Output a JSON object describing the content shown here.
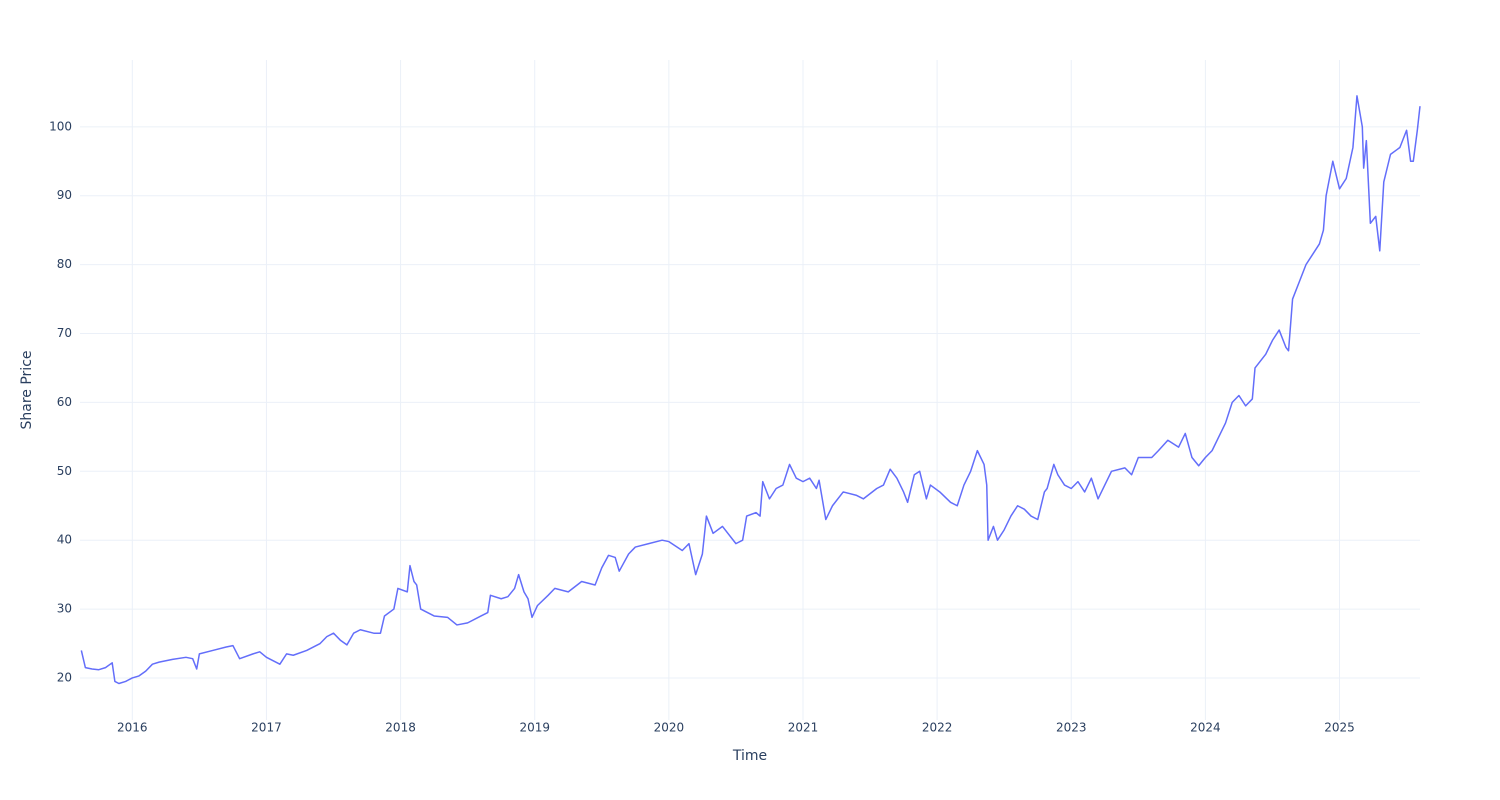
{
  "chart_data": {
    "type": "line",
    "x_label": "Time",
    "y_label": "Share Price",
    "color": "#636efa",
    "grid": true,
    "xlim": [
      2015.61,
      2025.6
    ],
    "xticks": [
      2016,
      2017,
      2018,
      2019,
      2020,
      2021,
      2022,
      2023,
      2024,
      2025
    ],
    "ylim": [
      13.9,
      109.7
    ],
    "yticks": [
      20,
      30,
      40,
      50,
      60,
      70,
      80,
      90,
      100
    ],
    "x": [
      2015.62,
      2015.65,
      2015.7,
      2015.75,
      2015.8,
      2015.85,
      2015.87,
      2015.9,
      2015.95,
      2016.0,
      2016.05,
      2016.1,
      2016.15,
      2016.2,
      2016.3,
      2016.4,
      2016.45,
      2016.48,
      2016.5,
      2016.6,
      2016.7,
      2016.75,
      2016.8,
      2016.9,
      2016.95,
      2017.0,
      2017.1,
      2017.15,
      2017.2,
      2017.3,
      2017.4,
      2017.45,
      2017.5,
      2017.55,
      2017.6,
      2017.65,
      2017.7,
      2017.8,
      2017.85,
      2017.88,
      2017.95,
      2017.98,
      2018.05,
      2018.07,
      2018.1,
      2018.12,
      2018.15,
      2018.25,
      2018.35,
      2018.42,
      2018.5,
      2018.6,
      2018.65,
      2018.67,
      2018.75,
      2018.8,
      2018.85,
      2018.88,
      2018.92,
      2018.95,
      2018.98,
      2019.02,
      2019.1,
      2019.15,
      2019.25,
      2019.35,
      2019.45,
      2019.5,
      2019.55,
      2019.6,
      2019.63,
      2019.7,
      2019.75,
      2019.85,
      2019.95,
      2020.0,
      2020.1,
      2020.15,
      2020.2,
      2020.25,
      2020.28,
      2020.33,
      2020.4,
      2020.5,
      2020.55,
      2020.58,
      2020.65,
      2020.68,
      2020.7,
      2020.75,
      2020.8,
      2020.85,
      2020.9,
      2020.95,
      2021.0,
      2021.05,
      2021.1,
      2021.12,
      2021.17,
      2021.22,
      2021.3,
      2021.4,
      2021.45,
      2021.55,
      2021.6,
      2021.65,
      2021.7,
      2021.75,
      2021.78,
      2021.83,
      2021.87,
      2021.92,
      2021.95,
      2022.02,
      2022.1,
      2022.15,
      2022.2,
      2022.25,
      2022.3,
      2022.35,
      2022.37,
      2022.38,
      2022.42,
      2022.45,
      2022.5,
      2022.55,
      2022.6,
      2022.65,
      2022.7,
      2022.75,
      2022.8,
      2022.82,
      2022.87,
      2022.9,
      2022.95,
      2023.0,
      2023.05,
      2023.1,
      2023.15,
      2023.2,
      2023.25,
      2023.3,
      2023.4,
      2023.45,
      2023.5,
      2023.6,
      2023.65,
      2023.72,
      2023.8,
      2023.85,
      2023.9,
      2023.95,
      2024.0,
      2024.05,
      2024.1,
      2024.15,
      2024.2,
      2024.25,
      2024.3,
      2024.35,
      2024.37,
      2024.45,
      2024.5,
      2024.55,
      2024.6,
      2024.62,
      2024.65,
      2024.7,
      2024.75,
      2024.8,
      2024.85,
      2024.88,
      2024.9,
      2024.95,
      2025.0,
      2025.05,
      2025.1,
      2025.13,
      2025.17,
      2025.18,
      2025.2,
      2025.23,
      2025.27,
      2025.3,
      2025.33,
      2025.38,
      2025.45,
      2025.5,
      2025.53,
      2025.55,
      2025.58,
      2025.6
    ],
    "values": [
      24,
      21.5,
      21.3,
      21.2,
      21.5,
      22.2,
      19.5,
      19.2,
      19.5,
      20,
      20.3,
      21,
      22,
      22.3,
      22.7,
      23,
      22.8,
      21.3,
      23.5,
      24,
      24.5,
      24.7,
      22.8,
      23.5,
      23.8,
      23,
      22,
      23.5,
      23.3,
      24,
      25,
      26,
      26.5,
      25.5,
      24.8,
      26.5,
      27,
      26.5,
      26.5,
      29,
      30,
      33,
      32.5,
      36.3,
      34,
      33.5,
      30,
      29,
      28.8,
      27.7,
      28,
      29,
      29.5,
      32,
      31.5,
      31.8,
      33,
      35,
      32.5,
      31.5,
      28.8,
      30.5,
      32,
      33,
      32.5,
      34,
      33.5,
      36,
      37.8,
      37.5,
      35.5,
      38,
      39,
      39.5,
      40,
      39.8,
      38.5,
      39.5,
      35,
      38,
      43.5,
      41,
      42,
      39.5,
      40,
      43.5,
      44,
      43.5,
      48.5,
      46,
      47.5,
      48,
      51,
      49,
      48.5,
      49,
      47.5,
      48.7,
      43,
      45,
      47,
      46.5,
      46,
      47.5,
      48,
      50.3,
      49,
      47,
      45.5,
      49.5,
      50,
      46,
      48,
      47,
      45.5,
      45,
      48,
      50,
      53,
      51,
      48,
      40,
      42,
      40,
      41.5,
      43.5,
      45,
      44.5,
      43.5,
      43,
      47,
      47.5,
      51,
      49.5,
      48,
      47.5,
      48.5,
      47,
      49,
      46,
      48,
      50,
      50.5,
      49.5,
      52,
      52,
      53,
      54.5,
      53.5,
      55.5,
      52,
      50.8,
      52,
      53,
      55,
      57,
      60,
      61,
      59.5,
      60.5,
      65,
      67,
      69,
      70.5,
      68,
      67.5,
      75,
      77.5,
      80,
      81.5,
      83,
      85,
      90,
      95,
      91,
      92.5,
      97,
      104.5,
      100,
      94,
      98,
      86,
      87,
      82,
      92,
      96,
      97,
      99.5,
      95,
      95,
      99.5,
      103
    ]
  }
}
